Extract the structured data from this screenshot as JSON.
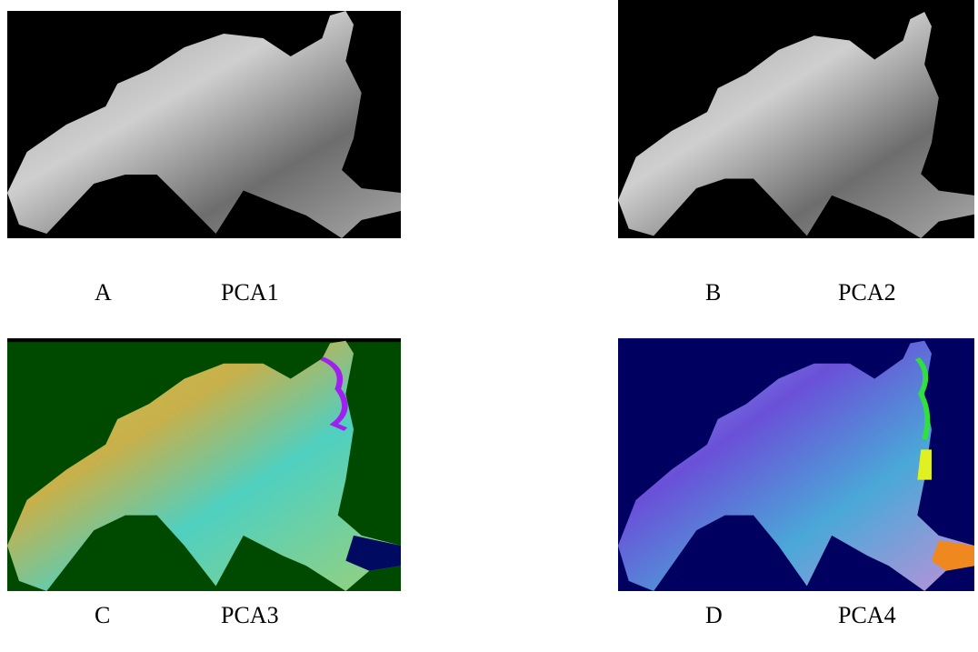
{
  "panels": [
    {
      "letter": "A",
      "label": "PCA1"
    },
    {
      "letter": "B",
      "label": "PCA2"
    },
    {
      "letter": "C",
      "label": "PCA3"
    },
    {
      "letter": "D",
      "label": "PCA4"
    }
  ]
}
